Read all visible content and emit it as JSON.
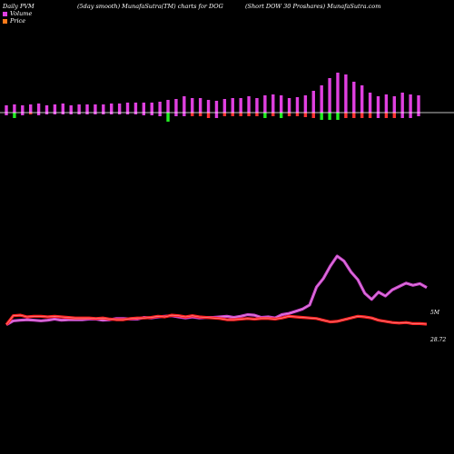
{
  "header": {
    "left": "Daily PVM",
    "center": "(5day smooth) MunafaSutra(TM) charts for DOG",
    "right": "(Short DOW 30  Proshares) MunafaSutra.com"
  },
  "legend": [
    {
      "label": "Volume",
      "color": "#e040e0"
    },
    {
      "label": "Price",
      "color": "#ff7a1a"
    }
  ],
  "colors": {
    "background": "#000000",
    "volume_up": "#e040e0",
    "volume_down": "#ff3333",
    "volume_green": "#22ee22",
    "volume_line": "#cc44cc",
    "price_line": "#ff2222",
    "baseline": "#ffffff"
  },
  "chart_data": [
    {
      "type": "bar",
      "name": "volume-bars",
      "baseline_value": 0,
      "values": [
        8,
        9,
        8,
        9,
        10,
        8,
        9,
        10,
        8,
        9,
        9,
        9,
        9,
        10,
        10,
        11,
        11,
        11,
        11,
        12,
        14,
        15,
        18,
        16,
        16,
        14,
        13,
        15,
        16,
        16,
        18,
        16,
        19,
        20,
        19,
        16,
        17,
        19,
        24,
        30,
        38,
        44,
        42,
        34,
        30,
        22,
        18,
        20,
        18,
        22,
        20,
        19
      ],
      "negatives": [
        -3,
        -6,
        -3,
        -2,
        -3,
        -2,
        -2,
        -2,
        -2,
        -2,
        -2,
        -2,
        -2,
        -2,
        -2,
        -2,
        -2,
        -3,
        -3,
        -4,
        -10,
        -4,
        -4,
        -4,
        -4,
        -6,
        -6,
        -4,
        -4,
        -4,
        -4,
        -4,
        -6,
        -4,
        -6,
        -4,
        -4,
        -5,
        -6,
        -8,
        -8,
        -8,
        -6,
        -6,
        -6,
        -6,
        -6,
        -6,
        -6,
        -6,
        -6,
        -4
      ],
      "negative_colors": [
        "up",
        "green",
        "up",
        "down",
        "up",
        "up",
        "up",
        "up",
        "up",
        "up",
        "up",
        "up",
        "up",
        "up",
        "up",
        "up",
        "up",
        "up",
        "up",
        "up",
        "green",
        "up",
        "up",
        "down",
        "down",
        "down",
        "up",
        "down",
        "down",
        "down",
        "down",
        "down",
        "green",
        "down",
        "green",
        "down",
        "down",
        "down",
        "down",
        "green",
        "green",
        "green",
        "down",
        "down",
        "down",
        "down",
        "up",
        "down",
        "down",
        "up",
        "up",
        "up"
      ]
    },
    {
      "type": "line",
      "name": "volume-line",
      "values": [
        28,
        35,
        36,
        37,
        36,
        35,
        36,
        38,
        36,
        37,
        37,
        37,
        38,
        38,
        36,
        37,
        39,
        39,
        38,
        38,
        41,
        40,
        42,
        43,
        44,
        42,
        40,
        42,
        40,
        41,
        41,
        42,
        43,
        41,
        43,
        46,
        45,
        41,
        42,
        40,
        46,
        48,
        52,
        56,
        63,
        95,
        110,
        132,
        150,
        141,
        122,
        108,
        84,
        73,
        86,
        79,
        90,
        96,
        102,
        98,
        101,
        94
      ]
    },
    {
      "type": "line",
      "name": "price-line",
      "values": [
        28,
        44,
        45,
        42,
        43,
        43,
        42,
        43,
        42,
        41,
        40,
        40,
        40,
        39,
        40,
        38,
        37,
        37,
        39,
        40,
        40,
        41,
        43,
        42,
        45,
        44,
        42,
        44,
        42,
        41,
        40,
        39,
        37,
        37,
        38,
        39,
        38,
        39,
        39,
        38,
        40,
        43,
        42,
        41,
        40,
        39,
        36,
        33,
        34,
        37,
        40,
        43,
        42,
        40,
        36,
        34,
        32,
        31,
        32,
        30,
        30,
        29
      ]
    }
  ],
  "labels": {
    "volume_end": "5M",
    "price_end": "28.72"
  }
}
